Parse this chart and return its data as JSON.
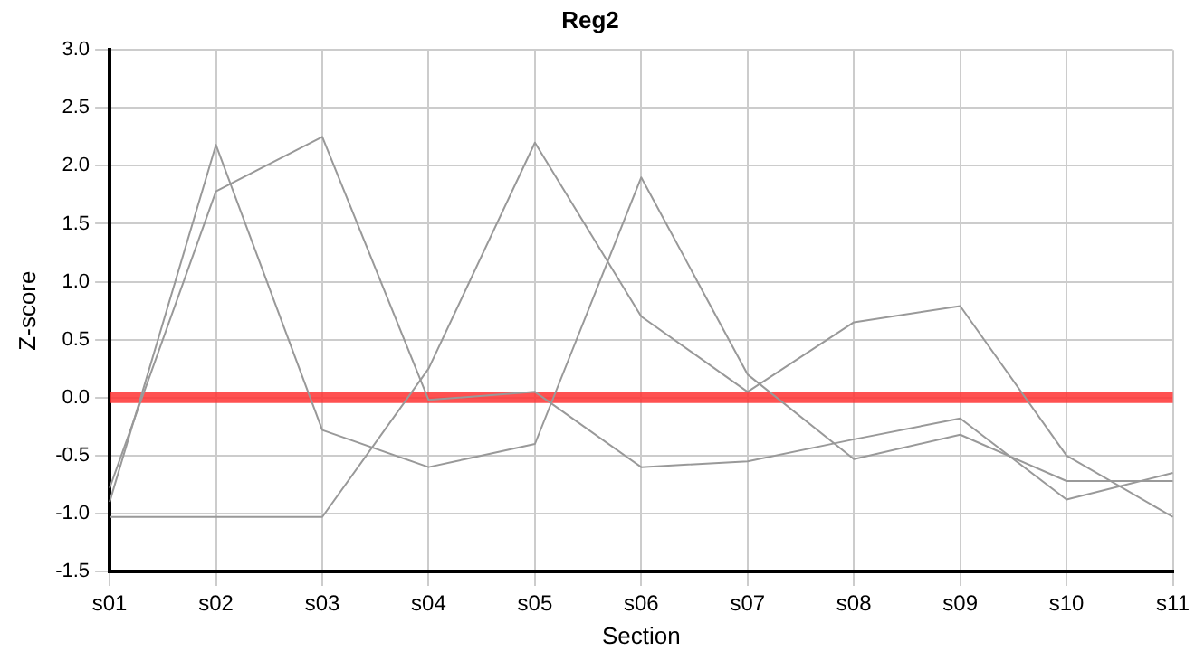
{
  "chart_data": {
    "type": "line",
    "title": "Reg2",
    "xlabel": "Section",
    "ylabel": "Z-score",
    "categories": [
      "s01",
      "s02",
      "s03",
      "s04",
      "s05",
      "s06",
      "s07",
      "s08",
      "s09",
      "s10",
      "s11"
    ],
    "series": [
      {
        "color": "#999999",
        "values": [
          -0.9,
          2.18,
          -0.28,
          -0.6,
          -0.4,
          1.9,
          0.2,
          -0.53,
          -0.32,
          -0.72,
          -0.72
        ]
      },
      {
        "color": "#999999",
        "values": [
          -0.78,
          1.78,
          2.25,
          -0.02,
          0.05,
          -0.6,
          -0.55,
          -0.36,
          -0.18,
          -0.88,
          -0.65
        ]
      },
      {
        "color": "#999999",
        "values": [
          -1.03,
          -1.03,
          -1.03,
          0.25,
          2.2,
          0.7,
          0.05,
          0.65,
          0.79,
          -0.5,
          -1.03
        ]
      }
    ],
    "ylim": [
      -1.5,
      3
    ],
    "yticks": [
      {
        "value": -1.5,
        "label": "-1.5"
      },
      {
        "value": -1,
        "label": "-1.0"
      },
      {
        "value": -0.5,
        "label": "-0.5"
      },
      {
        "value": 0,
        "label": "0.0"
      },
      {
        "value": 0.5,
        "label": "0.5"
      },
      {
        "value": 1,
        "label": "1.0"
      },
      {
        "value": 1.5,
        "label": "1.5"
      },
      {
        "value": 2,
        "label": "2.0"
      },
      {
        "value": 2.5,
        "label": "2.5"
      },
      {
        "value": 3,
        "label": "3.0"
      }
    ],
    "ref_lines": [
      {
        "axis": "y",
        "value": 0,
        "color": "#ff3333"
      }
    ],
    "grid": true,
    "legend": false,
    "marker": "none",
    "line_style": "solid"
  }
}
